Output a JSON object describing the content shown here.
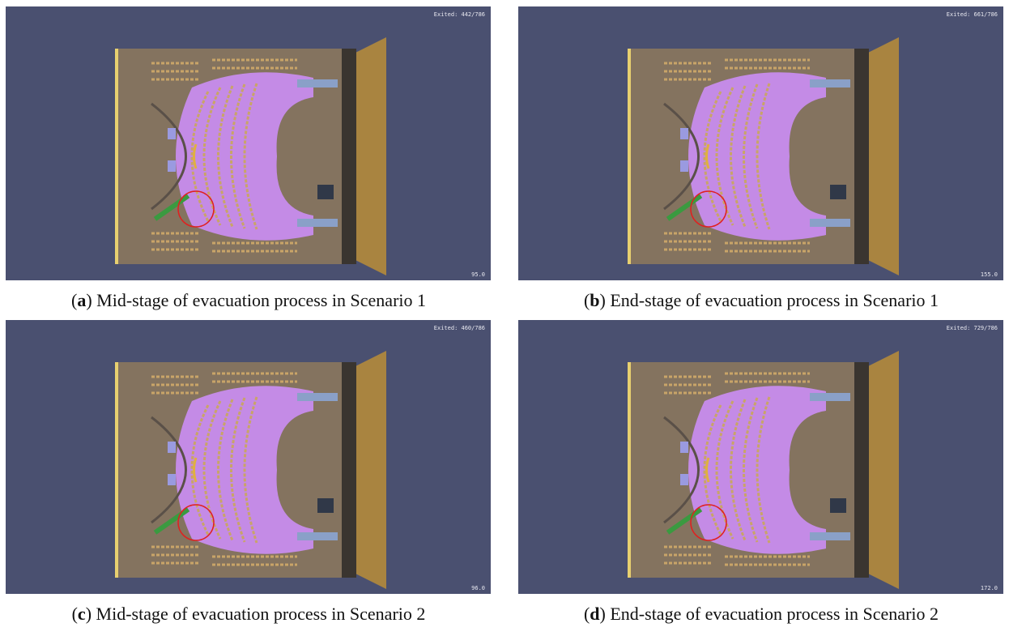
{
  "panels": [
    {
      "exited": "Exited: 442/786",
      "time": "95.0",
      "caption": {
        "open": "(",
        "label": "a",
        "text": ") Mid-stage of evacuation process in Scenario 1"
      }
    },
    {
      "exited": "Exited: 661/786",
      "time": "155.0",
      "caption": {
        "open": "(",
        "label": "b",
        "text": ") End-stage of evacuation process in Scenario 1"
      }
    },
    {
      "exited": "Exited: 460/786",
      "time": "96.0",
      "caption": {
        "open": "(",
        "label": "c",
        "text": ") Mid-stage of evacuation process in Scenario 2"
      }
    },
    {
      "exited": "Exited: 729/786",
      "time": "172.0",
      "caption": {
        "open": "(",
        "label": "d",
        "text": ") End-stage of evacuation process in Scenario 2"
      }
    }
  ]
}
